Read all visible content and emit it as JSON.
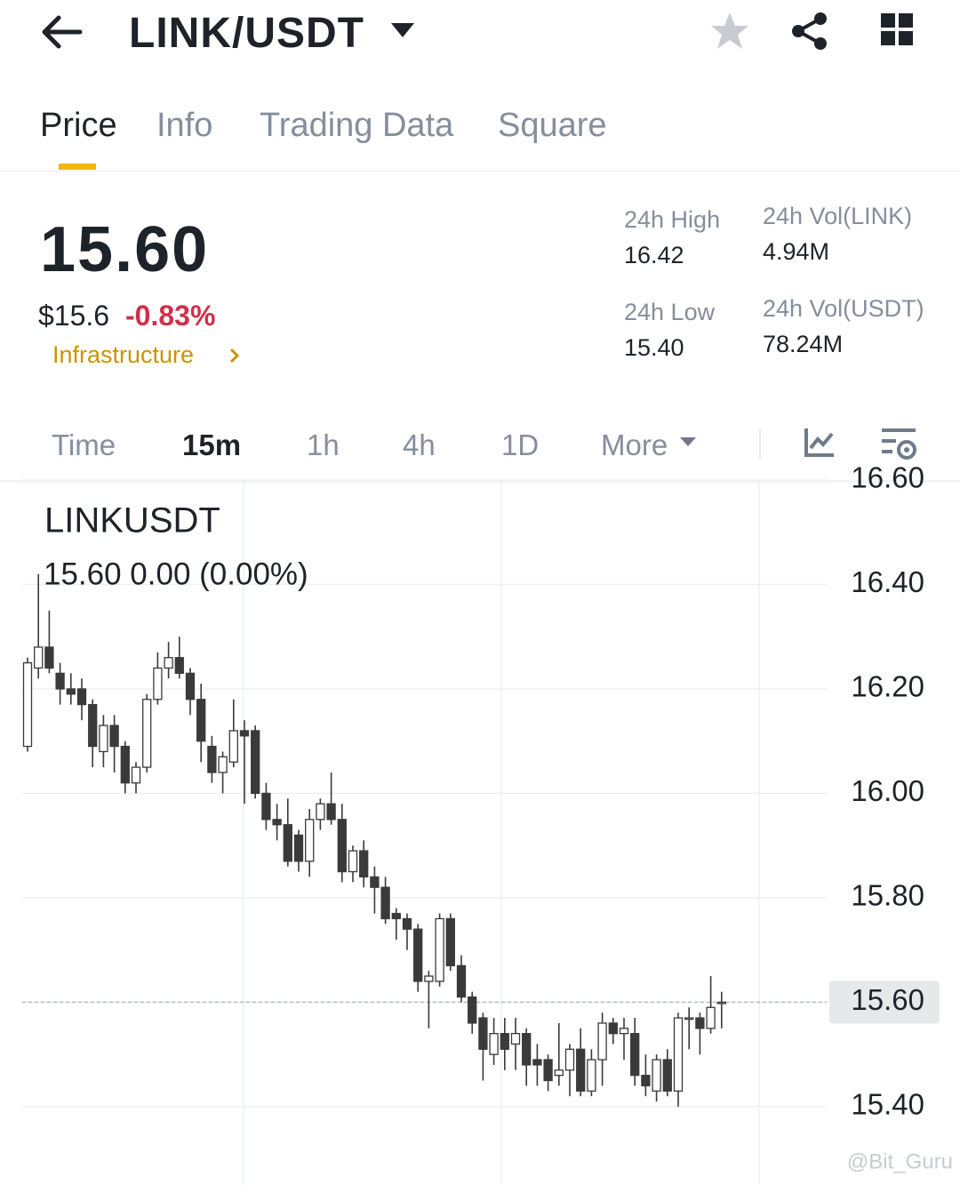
{
  "header": {
    "pair": "LINK/USDT"
  },
  "tabs": [
    "Price",
    "Info",
    "Trading Data",
    "Square"
  ],
  "price": {
    "last": "15.60",
    "usd": "$15.6",
    "change": "-0.83%",
    "tag": "Infrastructure"
  },
  "stats": [
    {
      "label": "24h High",
      "value": "16.42"
    },
    {
      "label": "24h Vol(LINK)",
      "value": "4.94M"
    },
    {
      "label": "24h Low",
      "value": "15.40"
    },
    {
      "label": "24h Vol(USDT)",
      "value": "78.24M"
    }
  ],
  "intervals": [
    "Time",
    "15m",
    "1h",
    "4h",
    "1D",
    "More"
  ],
  "chart_data": {
    "type": "candlestick",
    "title": "LINKUSDT",
    "subtitle": "15.60  0.00 (0.00%)",
    "ylim": [
      15.25,
      16.6
    ],
    "yticks": [
      {
        "value": 15.4,
        "label": "15.40"
      },
      {
        "value": 15.6,
        "label": "15.60"
      },
      {
        "value": 15.8,
        "label": "15.80"
      },
      {
        "value": 16.0,
        "label": "16.00"
      },
      {
        "value": 16.2,
        "label": "16.20"
      },
      {
        "value": 16.4,
        "label": "16.40"
      },
      {
        "value": 16.6,
        "label": "16.60"
      }
    ],
    "grid": true,
    "up_color": "#ffffff",
    "down_color": "#3a3a3a",
    "price_line": {
      "value": 15.6,
      "label": "15.60"
    },
    "open": [
      16.09,
      16.24,
      16.28,
      16.23,
      16.2,
      16.2,
      16.17,
      16.08,
      16.13,
      16.09,
      16.02,
      16.05,
      16.18,
      16.24,
      16.26,
      16.23,
      16.18,
      16.09,
      16.04,
      16.06,
      16.12,
      16.12,
      16.0,
      15.95,
      15.94,
      15.92,
      15.87,
      15.95,
      15.98,
      15.95,
      15.85,
      15.89,
      15.84,
      15.82,
      15.77,
      15.76,
      15.74,
      15.64,
      15.64,
      15.76,
      15.67,
      15.61,
      15.57,
      15.5,
      15.54,
      15.52,
      15.54,
      15.49,
      15.49,
      15.46,
      15.47,
      15.51,
      15.43,
      15.49,
      15.56,
      15.54,
      15.54,
      15.46,
      15.43,
      15.49,
      15.43,
      15.57,
      15.57,
      15.55,
      15.6
    ],
    "high": [
      16.26,
      16.42,
      16.35,
      16.25,
      16.23,
      16.22,
      16.18,
      16.15,
      16.15,
      16.1,
      16.06,
      16.19,
      16.27,
      16.29,
      16.3,
      16.24,
      16.21,
      16.11,
      16.08,
      16.18,
      16.14,
      16.13,
      16.02,
      15.98,
      15.99,
      15.93,
      15.97,
      15.99,
      16.04,
      15.98,
      15.9,
      15.91,
      15.86,
      15.84,
      15.78,
      15.77,
      15.75,
      15.66,
      15.77,
      15.77,
      15.69,
      15.62,
      15.58,
      15.57,
      15.57,
      15.57,
      15.55,
      15.52,
      15.5,
      15.56,
      15.52,
      15.55,
      15.51,
      15.58,
      15.57,
      15.57,
      15.57,
      15.5,
      15.5,
      15.51,
      15.58,
      15.59,
      15.58,
      15.65,
      15.62
    ],
    "low": [
      16.08,
      16.22,
      16.23,
      16.17,
      16.17,
      16.14,
      16.05,
      16.05,
      16.04,
      16.0,
      16.0,
      16.04,
      16.17,
      16.22,
      16.22,
      16.15,
      16.06,
      16.02,
      16.0,
      16.05,
      15.98,
      15.99,
      15.93,
      15.91,
      15.86,
      15.85,
      15.84,
      15.93,
      15.94,
      15.83,
      15.83,
      15.82,
      15.77,
      15.75,
      15.72,
      15.7,
      15.62,
      15.55,
      15.63,
      15.66,
      15.6,
      15.54,
      15.45,
      15.48,
      15.47,
      15.47,
      15.44,
      15.44,
      15.43,
      15.44,
      15.42,
      15.42,
      15.42,
      15.44,
      15.52,
      15.49,
      15.44,
      15.42,
      15.41,
      15.42,
      15.4,
      15.51,
      15.5,
      15.54,
      15.55
    ],
    "close": [
      16.25,
      16.28,
      16.24,
      16.2,
      16.19,
      16.17,
      16.09,
      16.13,
      16.09,
      16.02,
      16.05,
      16.18,
      16.24,
      16.26,
      16.23,
      16.18,
      16.1,
      16.04,
      16.07,
      16.12,
      16.11,
      16.0,
      15.95,
      15.94,
      15.87,
      15.87,
      15.95,
      15.98,
      15.95,
      15.85,
      15.89,
      15.84,
      15.82,
      15.76,
      15.76,
      15.74,
      15.64,
      15.65,
      15.76,
      15.67,
      15.61,
      15.56,
      15.51,
      15.54,
      15.51,
      15.54,
      15.48,
      15.48,
      15.45,
      15.47,
      15.51,
      15.43,
      15.49,
      15.56,
      15.54,
      15.55,
      15.46,
      15.44,
      15.49,
      15.43,
      15.57,
      15.57,
      15.55,
      15.59,
      15.6
    ]
  },
  "watermark": "@Bit_Guru"
}
